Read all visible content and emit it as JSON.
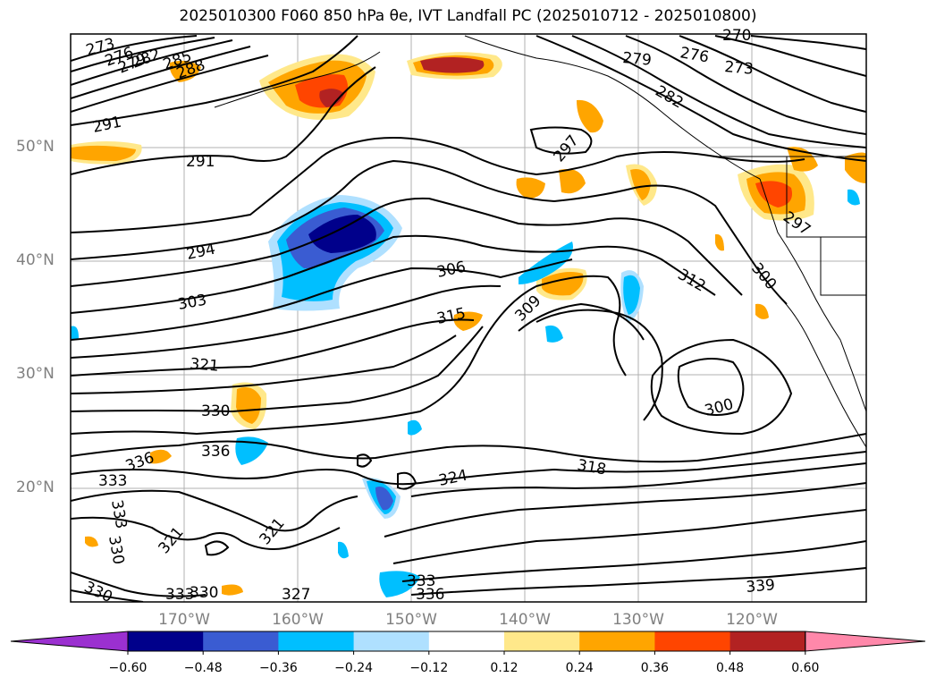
{
  "title": "2025010300 F060 850 hPa θe, IVT Landfall PC (2025010712 - 2025010800)",
  "latitudes": [
    {
      "label": "50°N",
      "value": 50
    },
    {
      "label": "40°N",
      "value": 40
    },
    {
      "label": "30°N",
      "value": 30
    },
    {
      "label": "20°N",
      "value": 20
    }
  ],
  "longitudes": [
    {
      "label": "170°W",
      "value": -170
    },
    {
      "label": "160°W",
      "value": -160
    },
    {
      "label": "150°W",
      "value": -150
    },
    {
      "label": "140°W",
      "value": -140
    },
    {
      "label": "130°W",
      "value": -130
    },
    {
      "label": "120°W",
      "value": -120
    }
  ],
  "colorbar": {
    "ticks": [
      "−0.60",
      "−0.48",
      "−0.36",
      "−0.24",
      "−0.12",
      "0.12",
      "0.24",
      "0.36",
      "0.48",
      "0.60"
    ],
    "colors": [
      "#9b30d0",
      "#00008b",
      "#3a5cd2",
      "#00bfff",
      "#afe0ff",
      "#ffffff",
      "#ffe88a",
      "#ffa500",
      "#ff4500",
      "#b22222",
      "#ff88aa"
    ]
  },
  "contour_labels": [
    "273",
    "276",
    "279",
    "282",
    "285",
    "288",
    "291",
    "291",
    "294",
    "297",
    "297",
    "300",
    "300",
    "303",
    "306",
    "309",
    "312",
    "315",
    "318",
    "321",
    "321",
    "321",
    "324",
    "327",
    "330",
    "330",
    "330",
    "330",
    "333",
    "333",
    "333",
    "333",
    "336",
    "336",
    "336",
    "339",
    "270",
    "273",
    "276",
    "279",
    "282"
  ]
}
